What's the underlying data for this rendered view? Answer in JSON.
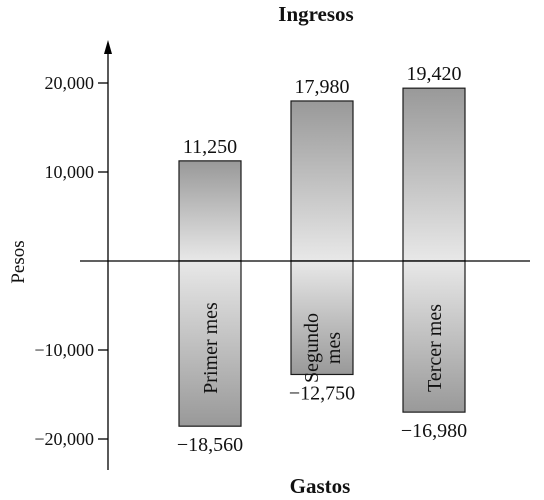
{
  "chart_data": {
    "type": "bar",
    "title": "Ingresos",
    "bottom_label": "Gastos",
    "ylabel": "Pesos",
    "xlabel": "",
    "ylim": [
      -23500,
      24000
    ],
    "yticks": [
      {
        "value": 20000,
        "label": "20,000"
      },
      {
        "value": 10000,
        "label": "10,000"
      },
      {
        "value": -10000,
        "label": "−10,000"
      },
      {
        "value": -20000,
        "label": "−20,000"
      }
    ],
    "categories": [
      {
        "label_lines": [
          "Primer mes"
        ]
      },
      {
        "label_lines": [
          "Segundo",
          "mes"
        ]
      },
      {
        "label_lines": [
          "Tercer mes"
        ]
      }
    ],
    "series": [
      {
        "name": "Ingresos",
        "values": [
          11250,
          17980,
          19420
        ],
        "labels": [
          "11,250",
          "17,980",
          "19,420"
        ]
      },
      {
        "name": "Gastos",
        "values": [
          -18560,
          -12750,
          -16980
        ],
        "labels": [
          "−18,560",
          "−12,750",
          "−16,980"
        ]
      }
    ],
    "grid": false,
    "colors": {
      "axis": "#000000",
      "bar_top_dark": "#999999",
      "bar_light": "#e8e8e8",
      "bar_stroke": "#1a1a1a",
      "text": "#111111"
    }
  }
}
